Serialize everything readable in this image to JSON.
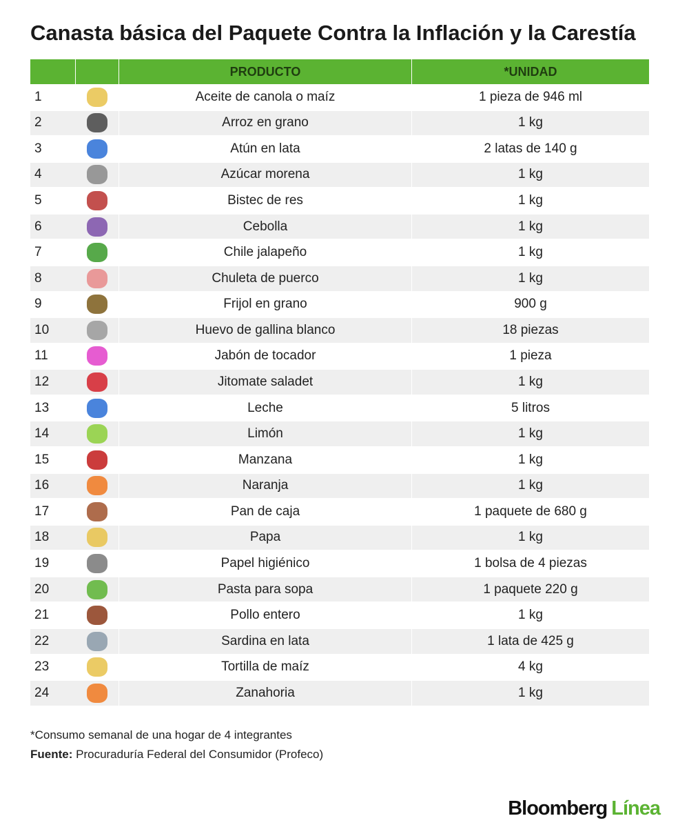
{
  "header": {
    "title": "Canasta básica del Paquete Contra la Inflación y la Carestía"
  },
  "table": {
    "columns": {
      "product": "PRODUCTO",
      "unit": "*UNIDAD"
    },
    "rows": [
      {
        "n": 1,
        "product": "Aceite de canola o maíz",
        "unit": "1 pieza de 946 ml"
      },
      {
        "n": 2,
        "product": "Arroz en grano",
        "unit": "1 kg"
      },
      {
        "n": 3,
        "product": "Atún en lata",
        "unit": "2 latas de 140 g"
      },
      {
        "n": 4,
        "product": "Azúcar morena",
        "unit": "1 kg"
      },
      {
        "n": 5,
        "product": "Bistec de res",
        "unit": "1 kg"
      },
      {
        "n": 6,
        "product": "Cebolla",
        "unit": "1 kg"
      },
      {
        "n": 7,
        "product": "Chile jalapeño",
        "unit": "1 kg"
      },
      {
        "n": 8,
        "product": "Chuleta de puerco",
        "unit": "1 kg"
      },
      {
        "n": 9,
        "product": "Frijol en grano",
        "unit": "900 g"
      },
      {
        "n": 10,
        "product": "Huevo de gallina blanco",
        "unit": "18 piezas"
      },
      {
        "n": 11,
        "product": "Jabón de tocador",
        "unit": "1 pieza"
      },
      {
        "n": 12,
        "product": "Jitomate saladet",
        "unit": "1 kg"
      },
      {
        "n": 13,
        "product": "Leche",
        "unit": "5 litros"
      },
      {
        "n": 14,
        "product": "Limón",
        "unit": "1 kg"
      },
      {
        "n": 15,
        "product": "Manzana",
        "unit": "1 kg"
      },
      {
        "n": 16,
        "product": "Naranja",
        "unit": "1 kg"
      },
      {
        "n": 17,
        "product": "Pan de caja",
        "unit": "1 paquete de 680 g"
      },
      {
        "n": 18,
        "product": "Papa",
        "unit": "1 kg"
      },
      {
        "n": 19,
        "product": "Papel higiénico",
        "unit": "1 bolsa de 4 piezas"
      },
      {
        "n": 20,
        "product": "Pasta para sopa",
        "unit": "1 paquete 220 g"
      },
      {
        "n": 21,
        "product": "Pollo entero",
        "unit": "1 kg"
      },
      {
        "n": 22,
        "product": "Sardina en lata",
        "unit": "1 lata de 425 g"
      },
      {
        "n": 23,
        "product": "Tortilla de maíz",
        "unit": "4 kg"
      },
      {
        "n": 24,
        "product": "Zanahoria",
        "unit": "1 kg"
      }
    ]
  },
  "footer": {
    "note": "*Consumo semanal de una hogar de 4 integrantes",
    "source_label": "Fuente:",
    "source": " Procuraduría Federal del Consumidor (Profeco)",
    "brand": "Bloomberg",
    "brand_accent": "Línea"
  }
}
